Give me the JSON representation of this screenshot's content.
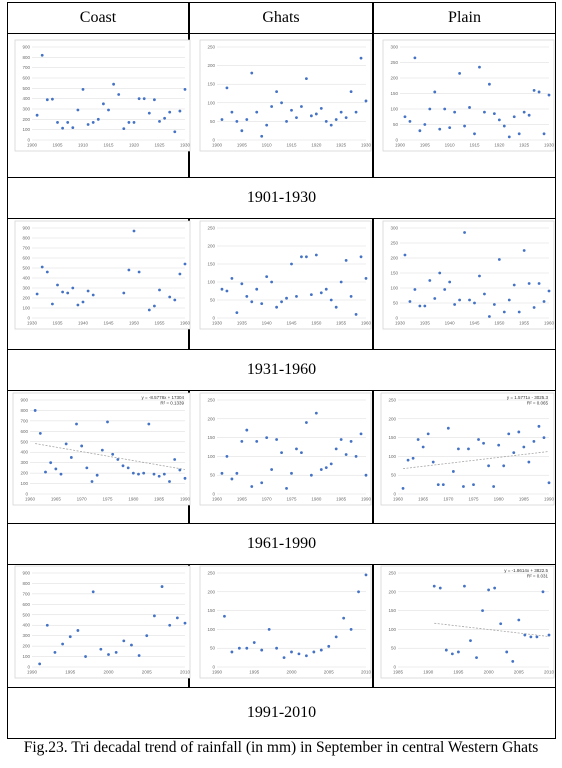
{
  "columns": [
    "Coast",
    "Ghats",
    "Plain"
  ],
  "caption": "Fig.23. Tri decadal trend of rainfall (in mm) in September in central Western Ghats",
  "colors": {
    "marker": "#4472c4",
    "trend": "#a6a6a6",
    "gridline": "#d9d9d9"
  },
  "periods": [
    {
      "label": "1901-1930"
    },
    {
      "label": "1931-1960"
    },
    {
      "label": "1961-1990"
    },
    {
      "label": "1991-2010"
    }
  ],
  "chart_data": [
    {
      "type": "scatter",
      "period": "1901-1930",
      "region": "Coast",
      "xlim": [
        1900,
        1930
      ],
      "ylim": [
        0,
        900
      ],
      "xticks": [
        1900,
        1905,
        1910,
        1915,
        1920,
        1925,
        1930
      ],
      "yticks": [
        0,
        100,
        200,
        300,
        400,
        500,
        600,
        700,
        800,
        900
      ],
      "x": [
        1901,
        1902,
        1903,
        1904,
        1905,
        1906,
        1907,
        1908,
        1909,
        1910,
        1911,
        1912,
        1913,
        1914,
        1915,
        1916,
        1917,
        1918,
        1919,
        1920,
        1921,
        1922,
        1923,
        1924,
        1925,
        1926,
        1927,
        1928,
        1929,
        1930
      ],
      "y": [
        240,
        820,
        390,
        395,
        170,
        115,
        170,
        120,
        290,
        490,
        150,
        170,
        200,
        350,
        290,
        540,
        440,
        110,
        170,
        170,
        400,
        400,
        260,
        390,
        180,
        210,
        270,
        80,
        280,
        490
      ]
    },
    {
      "type": "scatter",
      "period": "1901-1930",
      "region": "Ghats",
      "xlim": [
        1900,
        1930
      ],
      "ylim": [
        0,
        250
      ],
      "xticks": [
        1900,
        1905,
        1910,
        1915,
        1920,
        1925,
        1930
      ],
      "yticks": [
        0,
        50,
        100,
        150,
        200,
        250
      ],
      "x": [
        1901,
        1902,
        1903,
        1904,
        1905,
        1906,
        1907,
        1908,
        1909,
        1910,
        1911,
        1912,
        1913,
        1914,
        1915,
        1916,
        1917,
        1918,
        1919,
        1920,
        1921,
        1922,
        1923,
        1924,
        1925,
        1926,
        1927,
        1928,
        1929,
        1930
      ],
      "y": [
        55,
        140,
        75,
        50,
        25,
        55,
        180,
        75,
        10,
        40,
        90,
        130,
        100,
        50,
        80,
        60,
        90,
        165,
        65,
        70,
        85,
        50,
        40,
        55,
        75,
        60,
        130,
        75,
        220,
        105
      ]
    },
    {
      "type": "scatter",
      "period": "1901-1930",
      "region": "Plain",
      "xlim": [
        1900,
        1930
      ],
      "ylim": [
        0,
        300
      ],
      "xticks": [
        1900,
        1905,
        1910,
        1915,
        1920,
        1925,
        1930
      ],
      "yticks": [
        0,
        50,
        100,
        150,
        200,
        250,
        300
      ],
      "x": [
        1901,
        1902,
        1903,
        1904,
        1905,
        1906,
        1907,
        1908,
        1909,
        1910,
        1911,
        1912,
        1913,
        1914,
        1915,
        1916,
        1917,
        1918,
        1919,
        1920,
        1921,
        1922,
        1923,
        1924,
        1925,
        1926,
        1927,
        1928,
        1929,
        1930
      ],
      "y": [
        75,
        60,
        265,
        30,
        50,
        100,
        155,
        35,
        100,
        40,
        90,
        215,
        45,
        105,
        20,
        235,
        90,
        180,
        85,
        65,
        45,
        10,
        75,
        20,
        90,
        80,
        160,
        155,
        20,
        145
      ]
    },
    {
      "type": "scatter",
      "period": "1931-1960",
      "region": "Coast",
      "xlim": [
        1930,
        1960
      ],
      "ylim": [
        0,
        900
      ],
      "xticks": [
        1930,
        1935,
        1940,
        1945,
        1950,
        1955,
        1960
      ],
      "yticks": [
        0,
        100,
        200,
        300,
        400,
        500,
        600,
        700,
        800,
        900
      ],
      "x": [
        1931,
        1932,
        1933,
        1934,
        1935,
        1936,
        1937,
        1938,
        1939,
        1940,
        1941,
        1942,
        1948,
        1949,
        1950,
        1951,
        1953,
        1954,
        1955,
        1957,
        1958,
        1959,
        1960
      ],
      "y": [
        240,
        510,
        460,
        140,
        330,
        260,
        250,
        300,
        130,
        160,
        270,
        230,
        250,
        480,
        870,
        460,
        80,
        120,
        280,
        210,
        180,
        440,
        540
      ]
    },
    {
      "type": "scatter",
      "period": "1931-1960",
      "region": "Ghats",
      "xlim": [
        1930,
        1960
      ],
      "ylim": [
        0,
        250
      ],
      "xticks": [
        1930,
        1935,
        1940,
        1945,
        1950,
        1955,
        1960
      ],
      "yticks": [
        0,
        50,
        100,
        150,
        200,
        250
      ],
      "x": [
        1931,
        1932,
        1933,
        1934,
        1935,
        1936,
        1937,
        1938,
        1939,
        1940,
        1941,
        1942,
        1943,
        1944,
        1945,
        1946,
        1947,
        1948,
        1949,
        1950,
        1951,
        1952,
        1953,
        1954,
        1955,
        1956,
        1957,
        1958,
        1959,
        1960
      ],
      "y": [
        80,
        75,
        110,
        15,
        95,
        60,
        45,
        80,
        40,
        115,
        100,
        30,
        45,
        55,
        150,
        60,
        170,
        170,
        65,
        175,
        70,
        80,
        50,
        30,
        100,
        160,
        60,
        10,
        170,
        110
      ]
    },
    {
      "type": "scatter",
      "period": "1931-1960",
      "region": "Plain",
      "xlim": [
        1930,
        1960
      ],
      "ylim": [
        0,
        300
      ],
      "xticks": [
        1930,
        1935,
        1940,
        1945,
        1950,
        1955,
        1960
      ],
      "yticks": [
        0,
        50,
        100,
        150,
        200,
        250,
        300
      ],
      "x": [
        1931,
        1932,
        1933,
        1934,
        1935,
        1936,
        1937,
        1938,
        1939,
        1940,
        1941,
        1942,
        1943,
        1944,
        1945,
        1946,
        1947,
        1948,
        1949,
        1950,
        1951,
        1952,
        1953,
        1954,
        1955,
        1956,
        1957,
        1958,
        1959,
        1960
      ],
      "y": [
        210,
        55,
        95,
        40,
        40,
        125,
        65,
        150,
        95,
        120,
        45,
        60,
        285,
        60,
        50,
        140,
        80,
        5,
        45,
        195,
        20,
        60,
        110,
        20,
        225,
        115,
        35,
        115,
        55,
        90
      ]
    },
    {
      "type": "scatter",
      "period": "1961-1990",
      "region": "Coast",
      "xlim": [
        1960,
        1990
      ],
      "ylim": [
        0,
        900
      ],
      "xticks": [
        1960,
        1965,
        1970,
        1975,
        1980,
        1985,
        1990
      ],
      "yticks": [
        0,
        100,
        200,
        300,
        400,
        500,
        600,
        700,
        800,
        900
      ],
      "x": [
        1961,
        1962,
        1963,
        1964,
        1965,
        1966,
        1967,
        1968,
        1969,
        1970,
        1971,
        1972,
        1973,
        1974,
        1975,
        1976,
        1977,
        1978,
        1979,
        1980,
        1981,
        1982,
        1983,
        1984,
        1985,
        1986,
        1987,
        1988,
        1989,
        1990
      ],
      "y": [
        800,
        580,
        210,
        300,
        240,
        190,
        480,
        350,
        670,
        460,
        250,
        120,
        180,
        420,
        690,
        380,
        330,
        270,
        250,
        200,
        190,
        200,
        670,
        190,
        170,
        190,
        120,
        330,
        230,
        150
      ],
      "trend": {
        "slope": -8.5778,
        "intercept": 17304,
        "equation": "y = -8.5778x + 17304",
        "r2": "R² = 0.1339"
      }
    },
    {
      "type": "scatter",
      "period": "1961-1990",
      "region": "Ghats",
      "xlim": [
        1960,
        1990
      ],
      "ylim": [
        0,
        250
      ],
      "xticks": [
        1960,
        1965,
        1970,
        1975,
        1980,
        1985,
        1990
      ],
      "yticks": [
        0,
        50,
        100,
        150,
        200,
        250
      ],
      "x": [
        1961,
        1962,
        1963,
        1964,
        1965,
        1966,
        1967,
        1968,
        1969,
        1970,
        1971,
        1972,
        1973,
        1974,
        1975,
        1976,
        1977,
        1978,
        1979,
        1980,
        1981,
        1982,
        1983,
        1984,
        1985,
        1986,
        1987,
        1988,
        1989,
        1990
      ],
      "y": [
        55,
        100,
        40,
        55,
        140,
        170,
        20,
        140,
        30,
        150,
        65,
        145,
        110,
        15,
        55,
        120,
        110,
        190,
        50,
        215,
        65,
        70,
        80,
        120,
        145,
        105,
        140,
        100,
        160,
        50
      ]
    },
    {
      "type": "scatter",
      "period": "1961-1990",
      "region": "Plain",
      "xlim": [
        1960,
        1990
      ],
      "ylim": [
        0,
        250
      ],
      "xticks": [
        1960,
        1965,
        1970,
        1975,
        1980,
        1985,
        1990
      ],
      "yticks": [
        0,
        50,
        100,
        150,
        200,
        250
      ],
      "x": [
        1961,
        1962,
        1963,
        1964,
        1965,
        1966,
        1967,
        1968,
        1969,
        1970,
        1971,
        1972,
        1973,
        1974,
        1975,
        1976,
        1977,
        1978,
        1979,
        1980,
        1981,
        1982,
        1983,
        1984,
        1985,
        1986,
        1987,
        1988,
        1989,
        1990
      ],
      "y": [
        15,
        90,
        95,
        145,
        125,
        160,
        85,
        25,
        25,
        175,
        60,
        120,
        20,
        120,
        25,
        145,
        135,
        75,
        20,
        130,
        75,
        160,
        110,
        165,
        125,
        85,
        140,
        180,
        150,
        30
      ],
      "trend": {
        "slope": 1.5771,
        "intercept": -3025.3,
        "equation": "y = 1.5771x - 3025.3",
        "r2": "R² = 0.065"
      }
    },
    {
      "type": "scatter",
      "period": "1991-2010",
      "region": "Coast",
      "xlim": [
        1990,
        2010
      ],
      "ylim": [
        0,
        900
      ],
      "xticks": [
        1990,
        1995,
        2000,
        2005,
        2010
      ],
      "yticks": [
        0,
        100,
        200,
        300,
        400,
        500,
        600,
        700,
        800,
        900
      ],
      "x": [
        1991,
        1992,
        1993,
        1994,
        1995,
        1996,
        1997,
        1998,
        1999,
        2000,
        2001,
        2002,
        2003,
        2004,
        2005,
        2006,
        2007,
        2008,
        2009,
        2010
      ],
      "y": [
        30,
        400,
        140,
        220,
        290,
        350,
        100,
        720,
        170,
        120,
        140,
        250,
        210,
        110,
        300,
        490,
        770,
        400,
        470,
        420
      ]
    },
    {
      "type": "scatter",
      "period": "1991-2010",
      "region": "Ghats",
      "xlim": [
        1990,
        2010
      ],
      "ylim": [
        0,
        250
      ],
      "xticks": [
        1990,
        1995,
        2000,
        2005,
        2010
      ],
      "yticks": [
        0,
        50,
        100,
        150,
        200,
        250
      ],
      "x": [
        1991,
        1992,
        1993,
        1994,
        1995,
        1996,
        1997,
        1998,
        1999,
        2000,
        2001,
        2002,
        2003,
        2004,
        2005,
        2006,
        2007,
        2008,
        2009,
        2010
      ],
      "y": [
        135,
        40,
        50,
        50,
        65,
        45,
        100,
        50,
        25,
        40,
        35,
        30,
        40,
        45,
        55,
        80,
        130,
        100,
        200,
        245
      ]
    },
    {
      "type": "scatter",
      "period": "1991-2010",
      "region": "Plain",
      "xlim": [
        1985,
        2010
      ],
      "ylim": [
        0,
        250
      ],
      "xticks": [
        1985,
        1990,
        1995,
        2000,
        2005,
        2010
      ],
      "yticks": [
        0,
        50,
        100,
        150,
        200,
        250
      ],
      "x": [
        1991,
        1992,
        1993,
        1994,
        1995,
        1996,
        1997,
        1998,
        1999,
        2000,
        2001,
        2002,
        2003,
        2004,
        2005,
        2006,
        2007,
        2008,
        2009,
        2010
      ],
      "y": [
        215,
        210,
        45,
        35,
        40,
        215,
        70,
        25,
        150,
        205,
        210,
        115,
        40,
        15,
        125,
        85,
        80,
        80,
        200,
        85
      ],
      "trend": {
        "slope": -1.8614,
        "intercept": 3822.5,
        "equation": "y = -1.8614x + 3822.5",
        "r2": "R² = 0.031"
      }
    }
  ]
}
